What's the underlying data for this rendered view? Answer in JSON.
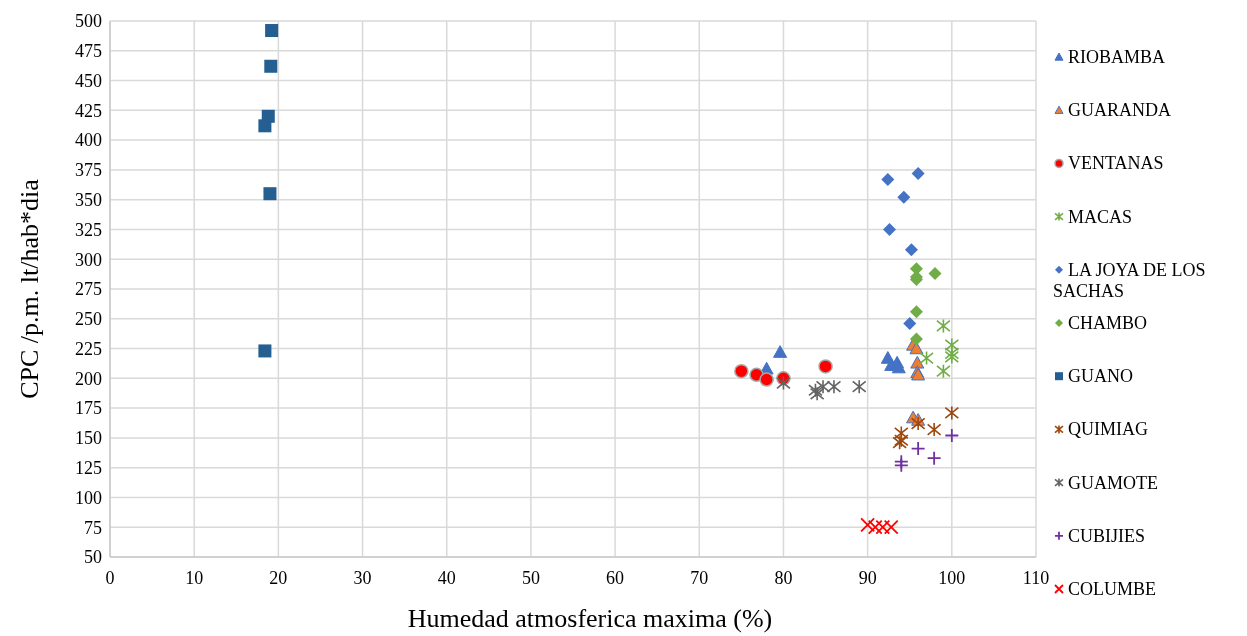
{
  "chart_data": {
    "type": "scatter",
    "xlabel": "Humedad atmosferica maxima (%)",
    "ylabel": "CPC /p.m. lt/hab*dia",
    "xlim": [
      0,
      110
    ],
    "xticks": [
      0,
      10,
      20,
      30,
      40,
      50,
      60,
      70,
      80,
      90,
      100,
      110
    ],
    "ylim": [
      50,
      500
    ],
    "yticks": [
      50,
      75,
      100,
      125,
      150,
      175,
      200,
      225,
      250,
      275,
      300,
      325,
      350,
      375,
      400,
      425,
      450,
      475,
      500
    ],
    "grid": true,
    "legend": "right",
    "series": [
      {
        "name": "RIOBAMBA",
        "color": "#4472c4",
        "marker": "triangle",
        "x": [
          79.6,
          78,
          92.4,
          92.8,
          93.5,
          93.7
        ],
        "values": [
          222,
          208,
          217,
          211,
          213,
          209
        ]
      },
      {
        "name": "GUARANDA",
        "color": "#ed7d31",
        "marker": "triangle",
        "x": [
          95.4,
          95.8,
          95.9,
          95.9,
          96,
          95.4,
          96
        ],
        "values": [
          228,
          225,
          213,
          205,
          203,
          167,
          165
        ]
      },
      {
        "name": "VENTANAS",
        "color": "#ff0000",
        "marker": "circle",
        "x": [
          75,
          76.8,
          78,
          80,
          85
        ],
        "values": [
          206,
          203,
          199,
          200,
          210
        ]
      },
      {
        "name": "MACAS",
        "color": "#70ad47",
        "marker": "cross",
        "x": [
          99,
          100,
          100,
          100,
          97,
          99
        ],
        "values": [
          244,
          228,
          221,
          218,
          217,
          206
        ]
      },
      {
        "name": "LA JOYA DE LOS SACHAS",
        "color": "#4472c4",
        "marker": "diamond",
        "x": [
          92.4,
          96,
          94.3,
          92.6,
          95.2,
          95
        ],
        "values": [
          367,
          372,
          352,
          325,
          308,
          246
        ]
      },
      {
        "name": "CHAMBO",
        "color": "#70ad47",
        "marker": "diamond",
        "x": [
          95.8,
          95.8,
          95.8,
          98,
          95.8,
          95.8
        ],
        "values": [
          292,
          285,
          283,
          288,
          256,
          233
        ]
      },
      {
        "name": "GUANO",
        "color": "#255e91",
        "marker": "square",
        "x": [
          19.2,
          19.1,
          18.8,
          18.4,
          19,
          18.4
        ],
        "values": [
          492,
          462,
          420,
          412,
          355,
          223
        ]
      },
      {
        "name": "QUIMIAG",
        "color": "#9e480e",
        "marker": "cross",
        "x": [
          94,
          94,
          93.8,
          96,
          97.9,
          100
        ],
        "values": [
          154,
          148,
          146,
          162,
          157,
          171
        ]
      },
      {
        "name": "GUAMOTE",
        "color": "#636363",
        "marker": "cross",
        "x": [
          80,
          83.8,
          84,
          84.7,
          86,
          89
        ],
        "values": [
          196,
          190,
          187,
          193,
          193,
          193
        ]
      },
      {
        "name": "CUBIJIES",
        "color": "#7030a0",
        "marker": "plus",
        "x": [
          94,
          94,
          96,
          97.9,
          100
        ],
        "values": [
          130,
          127,
          141,
          133,
          152
        ]
      },
      {
        "name": "COLUMBE",
        "color": "#ff0000",
        "marker": "x",
        "x": [
          90,
          90.9,
          91.8,
          92.8
        ],
        "values": [
          77,
          75,
          75,
          75
        ]
      }
    ]
  }
}
